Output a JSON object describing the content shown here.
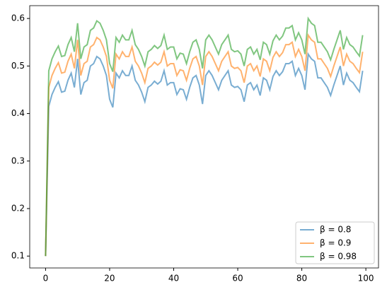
{
  "chart_data": {
    "type": "line",
    "x": [
      0,
      1,
      2,
      3,
      4,
      5,
      6,
      7,
      8,
      9,
      10,
      11,
      12,
      13,
      14,
      15,
      16,
      17,
      18,
      19,
      20,
      21,
      22,
      23,
      24,
      25,
      26,
      27,
      28,
      29,
      30,
      31,
      32,
      33,
      34,
      35,
      36,
      37,
      38,
      39,
      40,
      41,
      42,
      43,
      44,
      45,
      46,
      47,
      48,
      49,
      50,
      51,
      52,
      53,
      54,
      55,
      56,
      57,
      58,
      59,
      60,
      61,
      62,
      63,
      64,
      65,
      66,
      67,
      68,
      69,
      70,
      71,
      72,
      73,
      74,
      75,
      76,
      77,
      78,
      79,
      80,
      81,
      82,
      83,
      84,
      85,
      86,
      87,
      88,
      89,
      90,
      91,
      92,
      93,
      94,
      95,
      96,
      97,
      98,
      99
    ],
    "series": [
      {
        "name": "β = 0.8",
        "color": "#1f77b4",
        "values": [
          0.1,
          0.415,
          0.44,
          0.455,
          0.467,
          0.445,
          0.447,
          0.47,
          0.485,
          0.455,
          0.515,
          0.44,
          0.465,
          0.47,
          0.5,
          0.505,
          0.52,
          0.515,
          0.5,
          0.48,
          0.43,
          0.413,
          0.485,
          0.475,
          0.49,
          0.48,
          0.48,
          0.5,
          0.47,
          0.46,
          0.445,
          0.425,
          0.455,
          0.46,
          0.468,
          0.462,
          0.468,
          0.49,
          0.46,
          0.465,
          0.465,
          0.44,
          0.452,
          0.45,
          0.43,
          0.455,
          0.475,
          0.48,
          0.46,
          0.42,
          0.48,
          0.49,
          0.48,
          0.465,
          0.45,
          0.47,
          0.48,
          0.49,
          0.46,
          0.455,
          0.457,
          0.45,
          0.425,
          0.46,
          0.465,
          0.45,
          0.46,
          0.438,
          0.475,
          0.47,
          0.45,
          0.478,
          0.49,
          0.48,
          0.488,
          0.505,
          0.505,
          0.51,
          0.48,
          0.495,
          0.48,
          0.45,
          0.525,
          0.515,
          0.51,
          0.475,
          0.475,
          0.465,
          0.455,
          0.438,
          0.46,
          0.48,
          0.5,
          0.46,
          0.485,
          0.47,
          0.465,
          0.455,
          0.446,
          0.49
        ]
      },
      {
        "name": "β = 0.9",
        "color": "#ff7f0e",
        "values": [
          0.1,
          0.455,
          0.48,
          0.495,
          0.507,
          0.485,
          0.487,
          0.51,
          0.525,
          0.495,
          0.555,
          0.48,
          0.505,
          0.51,
          0.54,
          0.545,
          0.56,
          0.555,
          0.54,
          0.52,
          0.47,
          0.453,
          0.525,
          0.515,
          0.53,
          0.52,
          0.52,
          0.54,
          0.51,
          0.5,
          0.485,
          0.465,
          0.495,
          0.5,
          0.508,
          0.502,
          0.508,
          0.53,
          0.5,
          0.505,
          0.505,
          0.48,
          0.492,
          0.49,
          0.47,
          0.495,
          0.515,
          0.52,
          0.5,
          0.46,
          0.52,
          0.53,
          0.52,
          0.505,
          0.49,
          0.51,
          0.52,
          0.53,
          0.5,
          0.495,
          0.497,
          0.49,
          0.465,
          0.5,
          0.505,
          0.49,
          0.5,
          0.478,
          0.515,
          0.51,
          0.49,
          0.518,
          0.53,
          0.52,
          0.528,
          0.545,
          0.545,
          0.55,
          0.52,
          0.535,
          0.52,
          0.49,
          0.565,
          0.555,
          0.55,
          0.515,
          0.515,
          0.505,
          0.495,
          0.478,
          0.5,
          0.52,
          0.54,
          0.5,
          0.525,
          0.51,
          0.505,
          0.495,
          0.486,
          0.53
        ]
      },
      {
        "name": "β = 0.98",
        "color": "#2ca02c",
        "values": [
          0.1,
          0.49,
          0.515,
          0.53,
          0.542,
          0.52,
          0.522,
          0.545,
          0.56,
          0.53,
          0.59,
          0.515,
          0.54,
          0.545,
          0.575,
          0.58,
          0.595,
          0.59,
          0.575,
          0.555,
          0.505,
          0.488,
          0.56,
          0.55,
          0.565,
          0.555,
          0.555,
          0.575,
          0.545,
          0.535,
          0.52,
          0.5,
          0.53,
          0.535,
          0.543,
          0.537,
          0.543,
          0.565,
          0.535,
          0.54,
          0.54,
          0.515,
          0.527,
          0.525,
          0.505,
          0.53,
          0.55,
          0.555,
          0.535,
          0.495,
          0.555,
          0.565,
          0.555,
          0.54,
          0.525,
          0.545,
          0.555,
          0.565,
          0.535,
          0.53,
          0.532,
          0.525,
          0.5,
          0.535,
          0.54,
          0.525,
          0.535,
          0.513,
          0.55,
          0.545,
          0.525,
          0.553,
          0.565,
          0.555,
          0.563,
          0.58,
          0.58,
          0.585,
          0.555,
          0.57,
          0.555,
          0.525,
          0.6,
          0.59,
          0.585,
          0.55,
          0.55,
          0.54,
          0.53,
          0.513,
          0.535,
          0.555,
          0.575,
          0.535,
          0.56,
          0.545,
          0.54,
          0.53,
          0.521,
          0.565
        ]
      }
    ],
    "alpha": 0.6,
    "xlim": [
      -4.95,
      103.95
    ],
    "xticks": [
      0,
      20,
      40,
      60,
      80,
      100
    ],
    "ylim": [
      0.075,
      0.627
    ],
    "yticks": [
      0.1,
      0.2,
      0.3,
      0.4,
      0.5,
      0.6
    ],
    "legend": "lower right"
  }
}
